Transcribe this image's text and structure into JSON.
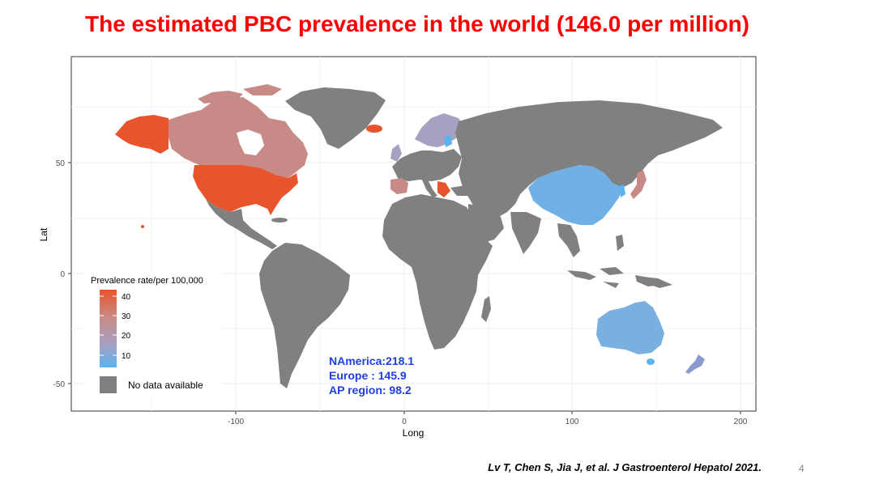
{
  "title": "The estimated PBC prevalence in the world (146.0 per million)",
  "map": {
    "xlabel": "Long",
    "ylabel": "Lat",
    "x_ticks": [
      "-100",
      "0",
      "100",
      "200"
    ],
    "y_ticks": [
      "50",
      "0",
      "-50"
    ],
    "legend": {
      "title": "Prevalence rate/per 100,000",
      "scale_ticks": [
        "40",
        "30",
        "20",
        "10"
      ],
      "gradient_low_color": "#5ab4f0",
      "gradient_high_color": "#e8542c",
      "no_data_label": "No data available",
      "no_data_color": "#808080"
    },
    "regions": [
      {
        "name": "Alaska",
        "color": "#e8542c"
      },
      {
        "name": "USA",
        "color": "#e8542c"
      },
      {
        "name": "Canada",
        "color": "#c88a86"
      },
      {
        "name": "Greenland",
        "color": "#808080"
      },
      {
        "name": "Iceland",
        "color": "#e8542c"
      },
      {
        "name": "Scandinavia",
        "color": "#a8a0c0"
      },
      {
        "name": "China",
        "color": "#6fb0e6"
      },
      {
        "name": "Japan",
        "color": "#c88a86"
      },
      {
        "name": "Australia",
        "color": "#7ab0e0"
      },
      {
        "name": "New Zealand",
        "color": "#8a9ad0"
      }
    ]
  },
  "stats": {
    "line1": "NAmerica:218.1",
    "line2": "Europe : 145.9",
    "line3": "AP region: 98.2"
  },
  "citation": "Lv T, Chen S, Jia J, et al. J Gastroenterol Hepatol 2021.",
  "page_number": "4"
}
